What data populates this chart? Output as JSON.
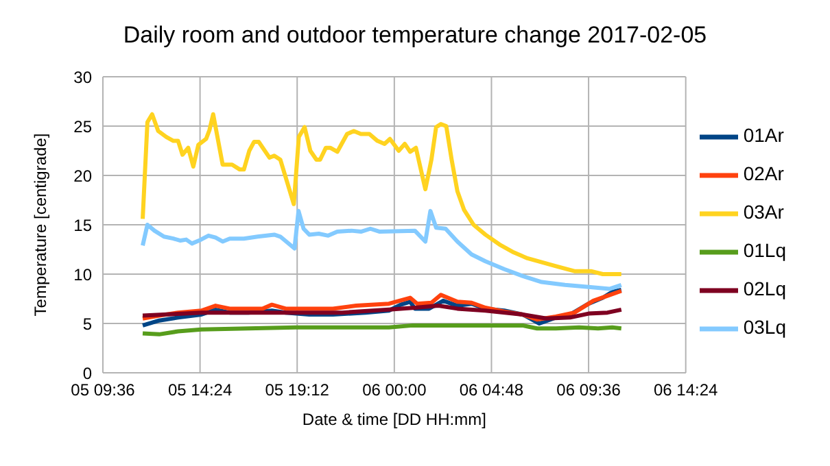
{
  "chart_data": {
    "type": "line",
    "title": "Daily room and outdoor temperature change 2017-02-05",
    "xlabel": "Date & time [DD HH:mm]",
    "ylabel": "Temperature [centigrade]",
    "xlim": [
      "2017-02-05T09:36",
      "2017-02-06T14:24"
    ],
    "xticks": [
      {
        "value": "2017-02-05T09:36",
        "label": "05 09:36"
      },
      {
        "value": "2017-02-05T14:24",
        "label": "05 14:24"
      },
      {
        "value": "2017-02-05T19:12",
        "label": "05 19:12"
      },
      {
        "value": "2017-02-06T00:00",
        "label": "06 00:00"
      },
      {
        "value": "2017-02-06T04:48",
        "label": "06 04:48"
      },
      {
        "value": "2017-02-06T09:36",
        "label": "06 09:36"
      },
      {
        "value": "2017-02-06T14:24",
        "label": "06 14:24"
      }
    ],
    "ylim": [
      0,
      30
    ],
    "yticks": [
      0,
      5,
      10,
      15,
      20,
      25,
      30
    ],
    "grid": true,
    "legend": "right",
    "marker": "none",
    "series": [
      {
        "name": "01Ar",
        "color": "#004586",
        "x": [
          "2017-02-05T11:34",
          "2017-02-05T12:23",
          "2017-02-05T13:19",
          "2017-02-05T14:28",
          "2017-02-05T15:10",
          "2017-02-05T15:52",
          "2017-02-05T16:47",
          "2017-02-05T17:57",
          "2017-02-05T18:38",
          "2017-02-05T19:48",
          "2017-02-05T20:58",
          "2017-02-05T22:35",
          "2017-02-05T23:44",
          "2017-02-06T00:19",
          "2017-02-06T00:47",
          "2017-02-06T01:01",
          "2017-02-06T01:43",
          "2017-02-06T02:25",
          "2017-02-06T03:07",
          "2017-02-06T03:49",
          "2017-02-06T04:30",
          "2017-02-06T05:26",
          "2017-02-06T06:21",
          "2017-02-06T07:10",
          "2017-02-06T07:59",
          "2017-02-06T08:41",
          "2017-02-06T09:36",
          "2017-02-06T10:18",
          "2017-02-06T10:46",
          "2017-02-06T11:13"
        ],
        "values": [
          4.8,
          5.3,
          5.6,
          5.9,
          6.4,
          6.1,
          6.1,
          6.3,
          6.1,
          5.9,
          5.9,
          6.1,
          6.3,
          6.9,
          7.2,
          6.5,
          6.5,
          7.3,
          6.8,
          7.0,
          6.5,
          6.3,
          5.9,
          5.0,
          5.6,
          5.9,
          7.0,
          7.6,
          8.2,
          8.4
        ]
      },
      {
        "name": "02Ar",
        "color": "#ff420e",
        "x": [
          "2017-02-05T11:34",
          "2017-02-05T12:23",
          "2017-02-05T13:19",
          "2017-02-05T14:28",
          "2017-02-05T15:10",
          "2017-02-05T15:52",
          "2017-02-05T17:29",
          "2017-02-05T17:57",
          "2017-02-05T18:38",
          "2017-02-05T20:58",
          "2017-02-05T22:07",
          "2017-02-05T23:44",
          "2017-02-06T00:47",
          "2017-02-06T01:08",
          "2017-02-06T01:50",
          "2017-02-06T02:18",
          "2017-02-06T03:07",
          "2017-02-06T03:49",
          "2017-02-06T04:30",
          "2017-02-06T05:26",
          "2017-02-06T06:21",
          "2017-02-06T07:03",
          "2017-02-06T07:59",
          "2017-02-06T08:54",
          "2017-02-06T09:50",
          "2017-02-06T10:32",
          "2017-02-06T11:13"
        ],
        "values": [
          5.5,
          5.8,
          6.1,
          6.3,
          6.8,
          6.5,
          6.5,
          6.9,
          6.5,
          6.5,
          6.8,
          7.0,
          7.6,
          7.0,
          7.1,
          7.9,
          7.2,
          7.1,
          6.6,
          6.2,
          5.9,
          5.4,
          5.7,
          6.1,
          7.3,
          7.8,
          8.3
        ]
      },
      {
        "name": "03Ar",
        "color": "#ffd320",
        "x": [
          "2017-02-05T11:34",
          "2017-02-05T11:48",
          "2017-02-05T12:02",
          "2017-02-05T12:20",
          "2017-02-05T12:44",
          "2017-02-05T13:05",
          "2017-02-05T13:19",
          "2017-02-05T13:32",
          "2017-02-05T13:49",
          "2017-02-05T14:04",
          "2017-02-05T14:19",
          "2017-02-05T14:42",
          "2017-02-05T14:52",
          "2017-02-05T15:03",
          "2017-02-05T15:31",
          "2017-02-05T15:59",
          "2017-02-05T16:22",
          "2017-02-05T16:34",
          "2017-02-05T16:50",
          "2017-02-05T17:04",
          "2017-02-05T17:18",
          "2017-02-05T17:50",
          "2017-02-05T18:04",
          "2017-02-05T18:22",
          "2017-02-05T19:02",
          "2017-02-05T19:17",
          "2017-02-05T19:34",
          "2017-02-05T19:51",
          "2017-02-05T20:09",
          "2017-02-05T20:20",
          "2017-02-05T20:37",
          "2017-02-05T20:50",
          "2017-02-05T21:11",
          "2017-02-05T21:40",
          "2017-02-05T22:00",
          "2017-02-05T22:21",
          "2017-02-05T22:46",
          "2017-02-05T23:10",
          "2017-02-05T23:31",
          "2017-02-05T23:47",
          "2017-02-06T00:13",
          "2017-02-06T00:31",
          "2017-02-06T00:47",
          "2017-02-06T01:04",
          "2017-02-06T01:32",
          "2017-02-06T01:50",
          "2017-02-06T02:04",
          "2017-02-06T02:18",
          "2017-02-06T02:34",
          "2017-02-06T02:50",
          "2017-02-06T03:07",
          "2017-02-06T03:27",
          "2017-02-06T03:55",
          "2017-02-06T04:30",
          "2017-02-06T05:12",
          "2017-02-06T05:54",
          "2017-02-06T06:35",
          "2017-02-06T07:17",
          "2017-02-06T07:59",
          "2017-02-06T08:54",
          "2017-02-06T09:43",
          "2017-02-06T10:18",
          "2017-02-06T11:13"
        ],
        "values": [
          15.6,
          25.4,
          26.2,
          24.5,
          23.9,
          23.5,
          23.5,
          22.1,
          22.8,
          20.9,
          23.1,
          23.7,
          24.6,
          26.2,
          21.1,
          21.1,
          20.6,
          20.6,
          22.5,
          23.4,
          23.4,
          21.8,
          22.0,
          21.6,
          17.1,
          23.9,
          24.9,
          22.5,
          21.6,
          21.6,
          22.8,
          22.8,
          22.4,
          24.2,
          24.5,
          24.2,
          24.2,
          23.5,
          23.2,
          23.7,
          22.5,
          23.2,
          22.4,
          22.8,
          18.6,
          21.6,
          24.9,
          25.2,
          25.0,
          21.6,
          18.4,
          16.5,
          15.0,
          14.0,
          13.0,
          12.2,
          11.6,
          11.2,
          10.8,
          10.3,
          10.3,
          10.0,
          10.0
        ]
      },
      {
        "name": "01Lq",
        "color": "#579d1c",
        "x": [
          "2017-02-05T11:34",
          "2017-02-05T12:23",
          "2017-02-05T13:19",
          "2017-02-05T14:28",
          "2017-02-05T16:47",
          "2017-02-05T19:07",
          "2017-02-05T21:26",
          "2017-02-05T23:44",
          "2017-02-06T00:54",
          "2017-02-06T02:11",
          "2017-02-06T04:30",
          "2017-02-06T06:21",
          "2017-02-06T07:03",
          "2017-02-06T07:59",
          "2017-02-06T09:08",
          "2017-02-06T10:04",
          "2017-02-06T10:46",
          "2017-02-06T11:13"
        ],
        "values": [
          4.0,
          3.9,
          4.2,
          4.4,
          4.5,
          4.6,
          4.6,
          4.6,
          4.8,
          4.8,
          4.8,
          4.8,
          4.5,
          4.5,
          4.6,
          4.5,
          4.6,
          4.5
        ]
      },
      {
        "name": "02Lq",
        "color": "#7e0021",
        "x": [
          "2017-02-05T11:34",
          "2017-02-05T12:37",
          "2017-02-05T14:28",
          "2017-02-05T16:47",
          "2017-02-05T19:07",
          "2017-02-05T21:26",
          "2017-02-05T23:44",
          "2017-02-06T01:01",
          "2017-02-06T02:11",
          "2017-02-06T03:07",
          "2017-02-06T04:30",
          "2017-02-06T06:21",
          "2017-02-06T07:31",
          "2017-02-06T08:41",
          "2017-02-06T09:36",
          "2017-02-06T10:32",
          "2017-02-06T11:13"
        ],
        "values": [
          5.8,
          5.9,
          6.1,
          6.1,
          6.1,
          6.1,
          6.4,
          6.6,
          6.8,
          6.5,
          6.3,
          5.9,
          5.5,
          5.6,
          6.0,
          6.1,
          6.4
        ]
      },
      {
        "name": "03Lq",
        "color": "#83caff",
        "x": [
          "2017-02-05T11:34",
          "2017-02-05T11:48",
          "2017-02-05T12:09",
          "2017-02-05T12:37",
          "2017-02-05T13:05",
          "2017-02-05T13:26",
          "2017-02-05T13:43",
          "2017-02-05T14:00",
          "2017-02-05T14:21",
          "2017-02-05T14:49",
          "2017-02-05T15:10",
          "2017-02-05T15:31",
          "2017-02-05T15:52",
          "2017-02-05T16:34",
          "2017-02-05T17:15",
          "2017-02-05T18:04",
          "2017-02-05T18:22",
          "2017-02-05T19:04",
          "2017-02-05T19:16",
          "2017-02-05T19:31",
          "2017-02-05T19:48",
          "2017-02-05T20:16",
          "2017-02-05T20:44",
          "2017-02-05T21:11",
          "2017-02-05T21:53",
          "2017-02-05T22:21",
          "2017-02-05T22:49",
          "2017-02-05T23:17",
          "2017-02-06T01:01",
          "2017-02-06T01:32",
          "2017-02-06T01:47",
          "2017-02-06T02:04",
          "2017-02-06T02:32",
          "2017-02-06T03:07",
          "2017-02-06T03:49",
          "2017-02-06T04:30",
          "2017-02-06T05:26",
          "2017-02-06T06:21",
          "2017-02-06T07:17",
          "2017-02-06T08:26",
          "2017-02-06T09:36",
          "2017-02-06T10:38",
          "2017-02-06T11:13"
        ],
        "values": [
          12.9,
          15.0,
          14.4,
          13.8,
          13.6,
          13.4,
          13.5,
          13.1,
          13.4,
          13.9,
          13.7,
          13.3,
          13.6,
          13.6,
          13.8,
          14.0,
          13.8,
          12.6,
          16.4,
          14.6,
          14.0,
          14.1,
          13.9,
          14.3,
          14.4,
          14.3,
          14.6,
          14.3,
          14.4,
          13.3,
          16.4,
          14.7,
          14.6,
          13.3,
          12.0,
          11.3,
          10.5,
          9.8,
          9.2,
          8.9,
          8.7,
          8.5,
          8.9
        ]
      }
    ]
  }
}
